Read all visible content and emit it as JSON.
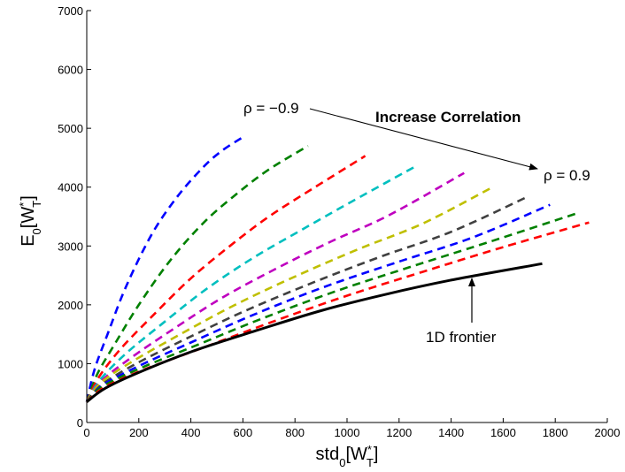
{
  "chart_data": {
    "type": "line",
    "xlabel": {
      "base": "std",
      "sub0": "0",
      "open": "[W",
      "sup": "*",
      "sub": "T",
      "close": "]"
    },
    "ylabel": {
      "base": "E",
      "sub0": "0",
      "open": "[W",
      "sup": "*",
      "sub": "T",
      "close": "]"
    },
    "xlim": [
      0,
      2000
    ],
    "ylim": [
      0,
      7000
    ],
    "xticks": [
      0,
      200,
      400,
      600,
      800,
      1000,
      1200,
      1400,
      1600,
      1800,
      2000
    ],
    "yticks": [
      0,
      1000,
      2000,
      3000,
      4000,
      5000,
      6000,
      7000
    ],
    "grid": false,
    "annotations": {
      "rho_low": "ρ = −0.9",
      "rho_high": "ρ = 0.9",
      "increase": "Increase Correlation",
      "frontier": "1D frontier"
    },
    "series": [
      {
        "style": "dashed",
        "color": "#0000ff",
        "x": [
          0,
          30,
          80,
          150,
          250,
          350,
          450,
          520,
          600
        ],
        "y": [
          350,
          900,
          1500,
          2300,
          3200,
          3850,
          4350,
          4620,
          4850
        ]
      },
      {
        "style": "dashed",
        "color": "#008000",
        "x": [
          0,
          40,
          110,
          200,
          320,
          450,
          580,
          700,
          850
        ],
        "y": [
          350,
          820,
          1350,
          2000,
          2750,
          3400,
          3900,
          4300,
          4700
        ]
      },
      {
        "style": "dashed",
        "color": "#ff0000",
        "x": [
          0,
          45,
          130,
          250,
          400,
          550,
          700,
          870,
          1070
        ],
        "y": [
          350,
          760,
          1250,
          1800,
          2450,
          3000,
          3500,
          3980,
          4530
        ]
      },
      {
        "style": "dashed",
        "color": "#00bfbf",
        "x": [
          0,
          50,
          150,
          290,
          460,
          640,
          820,
          1020,
          1270
        ],
        "y": [
          350,
          720,
          1170,
          1680,
          2270,
          2800,
          3260,
          3760,
          4370
        ]
      },
      {
        "style": "dashed",
        "color": "#bf00bf",
        "x": [
          0,
          55,
          170,
          330,
          520,
          730,
          940,
          1160,
          1450
        ],
        "y": [
          350,
          700,
          1100,
          1580,
          2120,
          2620,
          3080,
          3520,
          4240
        ]
      },
      {
        "style": "dashed",
        "color": "#bfbf00",
        "x": [
          0,
          55,
          180,
          360,
          570,
          800,
          1040,
          1290,
          1560
        ],
        "y": [
          350,
          680,
          1050,
          1500,
          2000,
          2480,
          2940,
          3380,
          4000
        ]
      },
      {
        "style": "dashed",
        "color": "#404040",
        "x": [
          0,
          60,
          190,
          380,
          610,
          870,
          1130,
          1400,
          1700
        ],
        "y": [
          350,
          650,
          1000,
          1420,
          1900,
          2380,
          2820,
          3240,
          3850
        ]
      },
      {
        "style": "dashed",
        "color": "#0000ff",
        "x": [
          0,
          60,
          200,
          400,
          640,
          910,
          1190,
          1480,
          1780
        ],
        "y": [
          350,
          630,
          960,
          1360,
          1830,
          2300,
          2720,
          3140,
          3700
        ]
      },
      {
        "style": "dashed",
        "color": "#008000",
        "x": [
          0,
          60,
          210,
          420,
          670,
          950,
          1240,
          1540,
          1880
        ],
        "y": [
          350,
          610,
          930,
          1310,
          1760,
          2220,
          2640,
          3060,
          3550
        ]
      },
      {
        "style": "dashed",
        "color": "#ff0000",
        "x": [
          0,
          65,
          220,
          440,
          700,
          990,
          1290,
          1600,
          1930
        ],
        "y": [
          350,
          590,
          900,
          1260,
          1690,
          2140,
          2560,
          2980,
          3400
        ]
      },
      {
        "style": "solid",
        "color": "#000000",
        "x": [
          0,
          70,
          200,
          400,
          650,
          900,
          1150,
          1400,
          1750
        ],
        "y": [
          350,
          580,
          850,
          1200,
          1560,
          1900,
          2180,
          2420,
          2700
        ]
      }
    ]
  }
}
